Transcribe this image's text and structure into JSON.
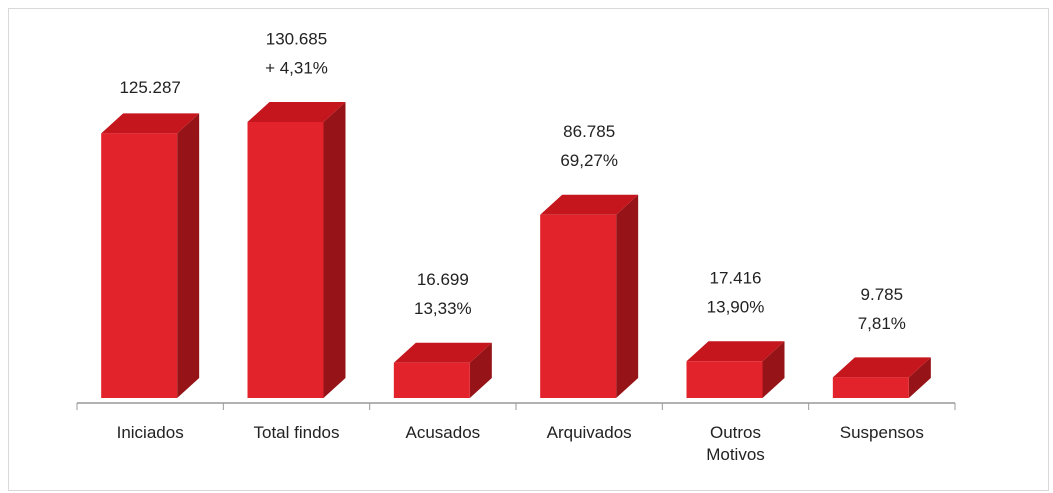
{
  "chart_data": {
    "type": "bar3d",
    "categories": [
      "Iniciados",
      "Total findos",
      "Acusados",
      "Arquivados",
      "Outros Motivos",
      "Suspensos"
    ],
    "values": [
      125287,
      130685,
      16699,
      86785,
      17416,
      9785
    ],
    "value_labels": [
      "125.287",
      "130.685",
      "16.699",
      "86.785",
      "17.416",
      "9.785"
    ],
    "percent_labels": [
      null,
      "+ 4,31%",
      "13,33%",
      "69,27%",
      "13,90%",
      "7,81%"
    ],
    "color": "#e3232b"
  }
}
